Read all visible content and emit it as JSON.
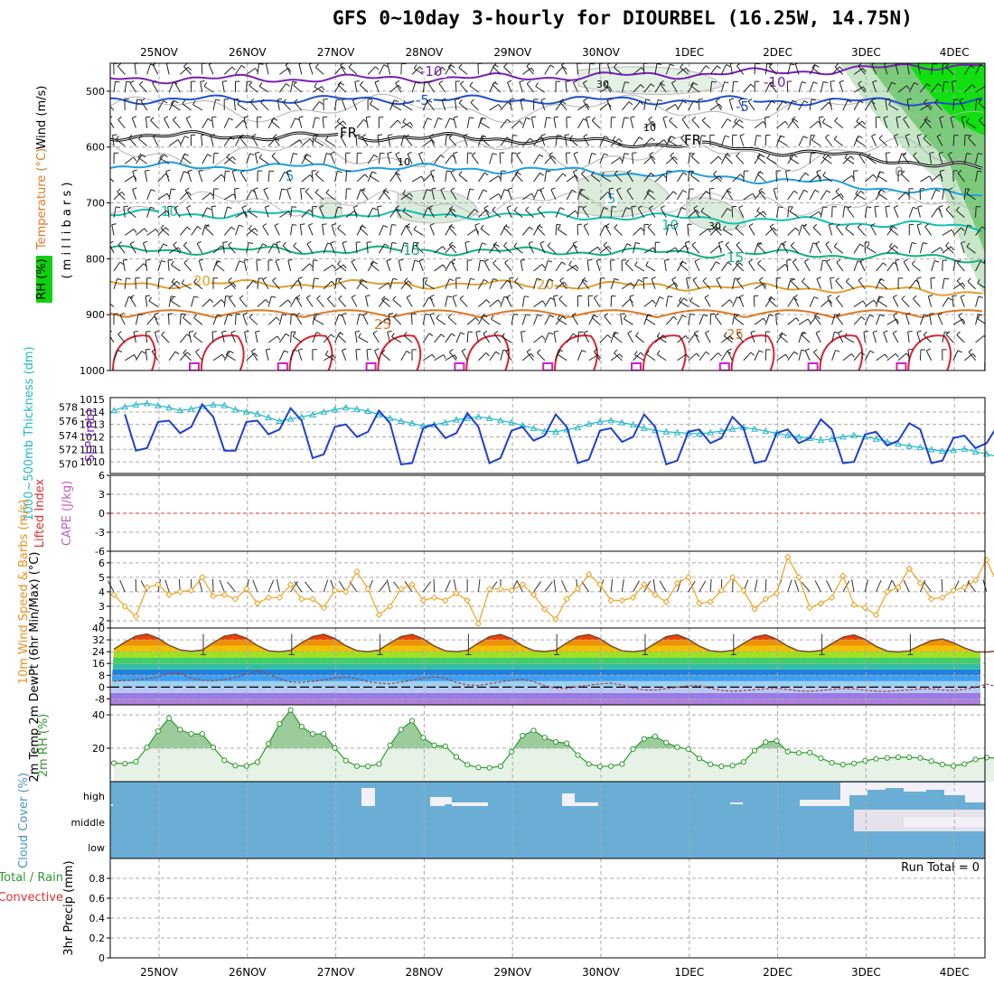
{
  "title": "GFS 0~10day 3-hourly for DIOURBEL (16.25W, 14.75N)",
  "dates": [
    "25NOV",
    "26NOV",
    "27NOV",
    "28NOV",
    "29NOV",
    "30NOV",
    "1DEC",
    "2DEC",
    "3DEC",
    "4DEC"
  ],
  "run_total": "Run Total = 0",
  "colors": {
    "panel_border": "#000000",
    "grid": "#aaaaaa",
    "isotherm_cold": "#7a1fb8",
    "isotherm_5": "#2050d0",
    "freezing": "#000000",
    "isotherm_mid": "#1ea0e0",
    "isotherm_10": "#10c0b0",
    "isotherm_15": "#10b080",
    "isotherm_20": "#e0a030",
    "isotherm_25": "#e07820",
    "isotherm_30": "#e02030",
    "slp": "#1f3fd0",
    "thickness": "#22b8c8",
    "wind_speed": "#f0a020",
    "cloud": "#6aaed6",
    "rh": "#2e9a2e"
  },
  "chart_data": [
    {
      "panel": "upper-air",
      "type": "heatmap",
      "ylabel": "( m i l l i b a r s )",
      "legend_labels": [
        "Wind (m/s)",
        "Temperature (°C)",
        "RH (%)"
      ],
      "yticks": [
        500,
        600,
        700,
        800,
        900,
        1000
      ],
      "ylim": [
        450,
        1000
      ],
      "isotherm_labels": [
        "-10",
        "-5",
        "FR",
        "5",
        "10",
        "15",
        "20",
        "25",
        "10",
        "30",
        "0"
      ],
      "isotherms": [
        {
          "name": "-10",
          "p_start": 478,
          "p_end": 450
        },
        {
          "name": "-5",
          "p_start": 515,
          "p_end": 520
        },
        {
          "name": "FR",
          "p_start": 580,
          "p_end": 640
        },
        {
          "name": "5",
          "p_start": 635,
          "p_end": 690
        },
        {
          "name": "10",
          "p_start": 720,
          "p_end": 745
        },
        {
          "name": "15",
          "p_start": 785,
          "p_end": 800
        },
        {
          "name": "20",
          "p_start": 845,
          "p_end": 860
        },
        {
          "name": "25",
          "p_start": 905,
          "p_end": 910
        }
      ]
    },
    {
      "panel": "slp-thickness",
      "type": "line",
      "ylabel_left": "1000~500mb Thickness (dm)",
      "ylabel_right": "SLP (mb)",
      "yticks_left": [
        570,
        572,
        574,
        576,
        578
      ],
      "yticks_right": [
        1010,
        1011,
        1012,
        1013,
        1014,
        1015
      ],
      "series": [
        {
          "name": "SLP",
          "values": [
            1013.8,
            1010.9,
            1011.1,
            1013.2,
            1013.3,
            1012.3,
            1012.8,
            1014.6,
            1013.6,
            1010.9,
            1010.9,
            1013.2,
            1013.3,
            1012.2,
            1012.6,
            1014.3,
            1013.3,
            1010.3,
            1010.6,
            1012.8,
            1013,
            1012,
            1012.4,
            1014.1,
            1013.1,
            1009.8,
            1009.9,
            1012.7,
            1013,
            1011.9,
            1012.3,
            1013.9,
            1012.8,
            1009.9,
            1010.3,
            1012.5,
            1012.8,
            1011.7,
            1012.1,
            1013.8,
            1012.8,
            1009.9,
            1010.2,
            1012.5,
            1012.7,
            1011.6,
            1012,
            1013.8,
            1012.8,
            1009.8,
            1010.1,
            1012.4,
            1012.6,
            1011.5,
            1011.9,
            1013.6,
            1012.7,
            1009.9,
            1010.1,
            1012.3,
            1012.6,
            1011.5,
            1011.9,
            1013.4,
            1012.6,
            1009.9,
            1010,
            1012.2,
            1012.4,
            1011.3,
            1011.7,
            1013.1,
            1012.6,
            1009.9,
            1010.1,
            1011.9,
            1012.1,
            1011.1,
            1011.5,
            1012.9,
            1012.2,
            1009.6,
            1010.4,
            1011.7,
            1011.2,
            1010.6,
            1011.1
          ]
        },
        {
          "name": "Thickness",
          "values": [
            577.5,
            578,
            578.3,
            578.5,
            578.2,
            577.9,
            577.5,
            577.7,
            578.1,
            578.3,
            578.2,
            577.6,
            577.3,
            577,
            576.5,
            576,
            576.3,
            576.6,
            576.9,
            577.3,
            577.6,
            577.9,
            577.7,
            577.4,
            576.9,
            576.4,
            576,
            575.7,
            575.3,
            575.5,
            575.8,
            576.2,
            576.4,
            576.6,
            576.4,
            576.1,
            575.8,
            575.4,
            575,
            574.6,
            574.5,
            574.8,
            575.1,
            575.6,
            575.9,
            576.1,
            575.8,
            575.5,
            575,
            574.7,
            574.5,
            574.4,
            574.3,
            574.2,
            574.4,
            574.6,
            574.9,
            575.1,
            574.9,
            574.6,
            574.3,
            574,
            573.8,
            573.6,
            573.3,
            573.5,
            573.8,
            574,
            573.8,
            573.5,
            573.1,
            572.8,
            572.5,
            572.3,
            572,
            571.8,
            571.9,
            572.1,
            571.7,
            571.4,
            571,
            570.7,
            570.4,
            570.2,
            570,
            569.7,
            569.9
          ]
        }
      ]
    },
    {
      "panel": "instability",
      "type": "line",
      "ylabel_left": "Lifted Index",
      "ylabel_right": "CAPE (J/kg)",
      "yticks": [
        6,
        3,
        0,
        -3,
        -6
      ],
      "ylim": [
        -6,
        6
      ]
    },
    {
      "panel": "10m-wind",
      "type": "line",
      "ylabel": "10m Wind Speed & Barbs (m/s)",
      "yticks": [
        2,
        3,
        4,
        5,
        6
      ],
      "ylim": [
        1.5,
        6.8
      ],
      "series": [
        {
          "name": "Speed",
          "values": [
            3.8,
            3,
            2.3,
            4.3,
            4.5,
            3.8,
            4,
            4.1,
            5,
            3.7,
            3.8,
            3.5,
            4.2,
            3.2,
            3.6,
            3.6,
            4.5,
            3.5,
            3.5,
            2.9,
            4.1,
            4,
            5.4,
            4.2,
            2.4,
            3,
            4.2,
            4.5,
            3.4,
            3.6,
            3.4,
            3.9,
            3.4,
            1.8,
            4.2,
            4.2,
            4.1,
            4.5,
            3.8,
            2.8,
            2.1,
            3.5,
            4.2,
            5.2,
            4.5,
            3.4,
            3.4,
            3.6,
            4.5,
            3.8,
            3.3,
            4.6,
            5,
            3.2,
            3.3,
            4.1,
            5,
            4.1,
            2.8,
            3.5,
            3.9,
            6.4,
            5,
            2.9,
            3.2,
            3.6,
            5.1,
            3.1,
            2.9,
            2.4,
            4,
            4.3,
            5.6,
            4.6,
            3.5,
            3.6,
            4.1,
            4.3,
            4.8,
            6.2,
            4.5,
            3.5,
            3.6,
            4.4,
            4.9,
            4.2,
            3.7,
            4.2,
            4.6,
            5.3,
            4.1,
            3,
            3.5,
            4
          ]
        }
      ]
    },
    {
      "panel": "2m-temp",
      "type": "area",
      "ylabel": "2m Temp 2m DewPt (6hr Min/Max) (°C)",
      "yticks": [
        40,
        32,
        24,
        16,
        8,
        0,
        -8
      ],
      "ylim": [
        -12,
        40
      ],
      "series": [
        {
          "name": "2m Temp",
          "values": [
            25.6,
            30.4,
            34.5,
            35.9,
            33.1,
            28.3,
            25.2,
            24.3,
            25.1,
            30.1,
            34.5,
            35.8,
            33.1,
            28.1,
            24.6,
            23.9,
            24.8,
            30,
            34.2,
            35.8,
            32.9,
            28,
            24.7,
            24,
            25.1,
            29.9,
            34.2,
            35.7,
            32.7,
            27.8,
            24.6,
            23.9,
            24.9,
            29.8,
            34.1,
            35.6,
            32.8,
            27.9,
            24.7,
            24.1,
            25,
            29.9,
            34.3,
            35.6,
            32.8,
            27.9,
            24.6,
            23.9,
            24.8,
            29.6,
            34.1,
            35.5,
            32.5,
            27.7,
            24.6,
            24,
            24.9,
            29.6,
            33.9,
            35.4,
            32.5,
            27.7,
            24.5,
            24,
            24.8,
            29.5,
            33.8,
            35.3,
            32.4,
            27.6,
            24.4,
            23.8,
            24.6,
            28.2,
            31.5,
            32.6,
            30,
            26.5,
            24,
            23.7,
            24.5,
            25.1
          ]
        },
        {
          "name": "2m DewPt",
          "values": [
            4.1,
            4.5,
            5,
            5.6,
            6.9,
            9.6,
            9.3,
            6,
            4.7,
            4.3,
            5.1,
            6.4,
            8.8,
            11.2,
            9.1,
            5.4,
            3.5,
            3.2,
            3.9,
            4.9,
            6.1,
            6.8,
            5.6,
            3.7,
            2.7,
            2.3,
            3.4,
            4.7,
            6,
            7,
            5.9,
            3.2,
            1.5,
            1.1,
            2.3,
            3.5,
            4.7,
            5.4,
            3.8,
            1,
            -0.7,
            -1,
            0.4,
            1.2,
            2.2,
            2.7,
            1.5,
            -0.6,
            -1.9,
            -2,
            -1.1,
            -0.1,
            1,
            1,
            -0.8,
            -2.2,
            -2.8,
            -2.4,
            -1.8,
            -1.2,
            -0.8,
            -1.6,
            -2.6,
            -2.9,
            -2.3,
            -1.6,
            -1,
            -1.2,
            -2.1,
            -2.8,
            -2.9,
            -2.4,
            -1.9,
            -1.3,
            -1.1,
            -1.9,
            -2.3,
            -1.5,
            -0.2,
            2,
            0.3,
            -2.7
          ]
        }
      ]
    },
    {
      "panel": "2m-rh",
      "type": "area",
      "ylabel": "2m RH (%)",
      "yticks": [
        20,
        40
      ],
      "ylim": [
        0,
        46
      ],
      "series": [
        {
          "name": "2m RH",
          "values": [
            11.1,
            10.8,
            11.9,
            20.5,
            30.2,
            38,
            31.1,
            28.6,
            28.6,
            20.6,
            12.8,
            9.6,
            9.4,
            11.7,
            22.7,
            34.6,
            42.9,
            32.9,
            28.6,
            28.6,
            20.2,
            12.6,
            9.3,
            9.2,
            10.6,
            21.8,
            31.2,
            36.4,
            26.3,
            21.8,
            21.2,
            14.8,
            10.1,
            8.5,
            8.3,
            9.2,
            17.9,
            27.6,
            30.6,
            26.4,
            23.8,
            23,
            15.9,
            10.6,
            9.1,
            9.3,
            10.5,
            19.5,
            25.6,
            27.1,
            23.4,
            20.7,
            19.5,
            13.9,
            10.4,
            9.2,
            9.6,
            11.8,
            18.6,
            23.7,
            24.4,
            17.9,
            17.2,
            17.4,
            14,
            11.3,
            10.2,
            10.9,
            12.5,
            13.7,
            14.2,
            14.6,
            14.6,
            14.2,
            12.3,
            10.3,
            9.4,
            10.6,
            13.3,
            14.4,
            14.1,
            14.6,
            14.6,
            13.5,
            11.6,
            9.4,
            9.9,
            12.3,
            13.7,
            14.4,
            15.4,
            13.6,
            17,
            25,
            19.8,
            16.2,
            16
          ]
        }
      ]
    },
    {
      "panel": "cloud-cover",
      "type": "area",
      "ylabel": "Cloud Cover (%)",
      "yticks": [
        "high",
        "middle",
        "low"
      ]
    },
    {
      "panel": "precip",
      "type": "bar",
      "ylabel": "3hr Precip (mm)",
      "legend_labels": [
        "Total / Rain",
        "Convective"
      ],
      "yticks": [
        0,
        0.2,
        0.4,
        0.6,
        0.8
      ],
      "ylim": [
        0,
        1
      ]
    }
  ]
}
